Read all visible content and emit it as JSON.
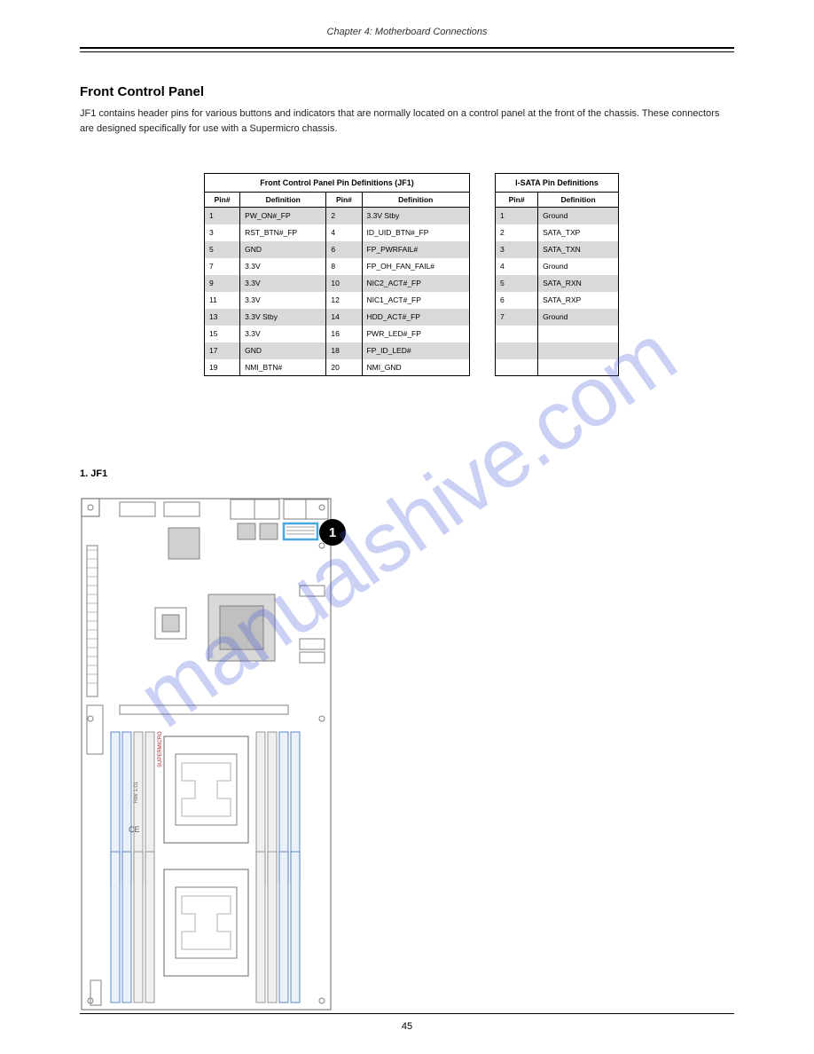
{
  "header": "Chapter 4: Motherboard Connections",
  "section_title": "Front Control Panel",
  "body_text": "JF1 contains header pins for various buttons and indicators that are normally located on a control panel at the front of the chassis. These connectors are designed specifically for use with a Supermicro chassis.",
  "marker_note": "1. JF1",
  "callout": "1",
  "page_number": "45",
  "watermark": "manualshive.com",
  "table_left": {
    "title": "Front Control Panel Pin Definitions (JF1)",
    "head": [
      "Pin#",
      "Definition",
      "Pin#",
      "Definition"
    ],
    "rows": [
      [
        "1",
        "PW_ON#_FP",
        "2",
        "3.3V Stby"
      ],
      [
        "3",
        "RST_BTN#_FP",
        "4",
        "ID_UID_BTN#_FP"
      ],
      [
        "5",
        "GND",
        "6",
        "FP_PWRFAIL#"
      ],
      [
        "7",
        "3.3V",
        "8",
        "FP_OH_FAN_FAIL#"
      ],
      [
        "9",
        "3.3V",
        "10",
        "NIC2_ACT#_FP"
      ],
      [
        "11",
        "3.3V",
        "12",
        "NIC1_ACT#_FP"
      ],
      [
        "13",
        "3.3V Stby",
        "14",
        "HDD_ACT#_FP"
      ],
      [
        "15",
        "3.3V",
        "16",
        "PWR_LED#_FP"
      ],
      [
        "17",
        "GND",
        "18",
        "FP_ID_LED#"
      ],
      [
        "19",
        "NMI_BTN#",
        "20",
        "NMI_GND"
      ]
    ]
  },
  "table_right": {
    "title": "I-SATA Pin Definitions",
    "head": [
      "Pin#",
      "Definition"
    ],
    "rows": [
      [
        "1",
        "Ground"
      ],
      [
        "2",
        "SATA_TXP"
      ],
      [
        "3",
        "SATA_TXN"
      ],
      [
        "4",
        "Ground"
      ],
      [
        "5",
        "SATA_RXN"
      ],
      [
        "6",
        "SATA_RXP"
      ],
      [
        "7",
        "Ground"
      ]
    ]
  },
  "colors": {
    "shade": "#d9d9d9",
    "dimm_blue": "#3b6fb6",
    "highlight": "#4aa8e0",
    "board_outline": "#888888",
    "chip_fill": "#d0d0d0"
  }
}
